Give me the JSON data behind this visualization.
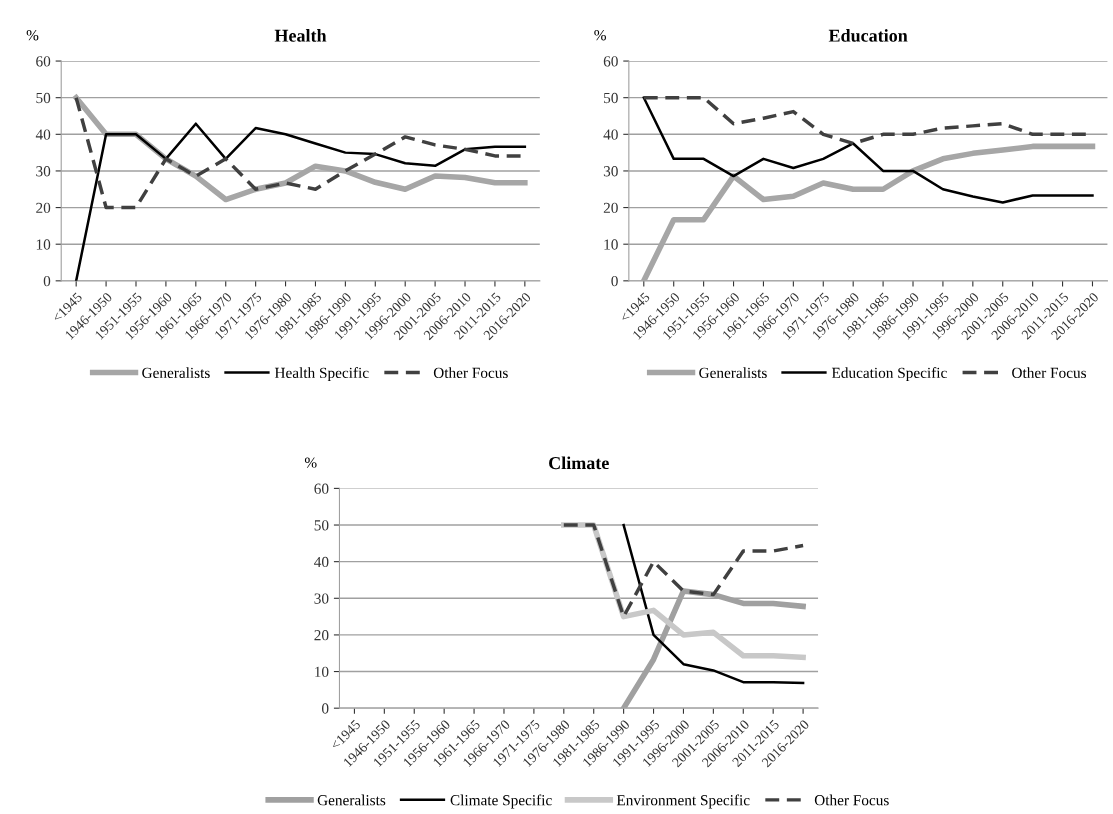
{
  "chart_data": [
    {
      "type": "line",
      "title": "Health",
      "ylabel": "%",
      "categories": [
        "<1945",
        "1946-1950",
        "1951-1955",
        "1956-1960",
        "1961-1965",
        "1966-1970",
        "1971-1975",
        "1976-1980",
        "1981-1985",
        "1986-1990",
        "1991-1995",
        "1996-2000",
        "2001-2005",
        "2006-2010",
        "2011-2015",
        "2016-2020"
      ],
      "ylim": [
        0,
        60
      ],
      "yticks": [
        0,
        10,
        20,
        30,
        40,
        50,
        60
      ],
      "grid": "y",
      "legend": "bottom",
      "series": [
        {
          "name": "Generalists",
          "color": "#a6a6a6",
          "line_style": "solid",
          "values": [
            50,
            40,
            40,
            33.3,
            28.6,
            22.2,
            25,
            26.7,
            31.3,
            30,
            26.9,
            25,
            28.6,
            28.2,
            26.8,
            26.8
          ]
        },
        {
          "name": "Health Specific",
          "color": "#000000",
          "line_style": "solid",
          "values": [
            0,
            40,
            40,
            33.3,
            42.9,
            33.3,
            41.7,
            40,
            37.5,
            35,
            34.6,
            32.1,
            31.4,
            35.9,
            36.6,
            36.6
          ]
        },
        {
          "name": "Other Focus",
          "color": "#404040",
          "line_style": "dashed",
          "values": [
            50,
            20,
            20,
            33.3,
            28.6,
            33.3,
            25,
            26.7,
            25,
            30,
            34.6,
            39.3,
            37.1,
            35.9,
            34.1,
            34.1
          ]
        }
      ]
    },
    {
      "type": "line",
      "title": "Education",
      "ylabel": "%",
      "categories": [
        "<1945",
        "1946-1950",
        "1951-1955",
        "1956-1960",
        "1961-1965",
        "1966-1970",
        "1971-1975",
        "1976-1980",
        "1981-1985",
        "1986-1990",
        "1991-1995",
        "1996-2000",
        "2001-2005",
        "2006-2010",
        "2011-2015",
        "2016-2020"
      ],
      "ylim": [
        0,
        60
      ],
      "yticks": [
        0,
        10,
        20,
        30,
        40,
        50,
        60
      ],
      "grid": "y",
      "legend": "bottom",
      "series": [
        {
          "name": "Generalists",
          "color": "#a6a6a6",
          "line_style": "solid",
          "values": [
            0,
            16.7,
            16.7,
            28.6,
            22.2,
            23.1,
            26.7,
            25,
            25,
            30,
            33.3,
            34.8,
            35.7,
            36.7,
            36.7,
            36.7
          ]
        },
        {
          "name": "Education Specific",
          "color": "#000000",
          "line_style": "solid",
          "values": [
            50,
            33.3,
            33.3,
            28.6,
            33.3,
            30.8,
            33.3,
            37.5,
            30,
            30,
            25,
            23,
            21.4,
            23.3,
            23.3,
            23.3
          ]
        },
        {
          "name": "Other Focus",
          "color": "#404040",
          "line_style": "dashed",
          "values": [
            50,
            50,
            50,
            42.9,
            44.4,
            46.2,
            40,
            37.5,
            40,
            40,
            41.7,
            42.3,
            42.9,
            40,
            40,
            40
          ]
        }
      ]
    },
    {
      "type": "line",
      "title": "Climate",
      "ylabel": "%",
      "categories": [
        "<1945",
        "1946-1950",
        "1951-1955",
        "1956-1960",
        "1961-1965",
        "1966-1970",
        "1971-1975",
        "1976-1980",
        "1981-1985",
        "1986-1990",
        "1991-1995",
        "1996-2000",
        "2001-2005",
        "2006-2010",
        "2011-2015",
        "2016-2020"
      ],
      "ylim": [
        0,
        60
      ],
      "yticks": [
        0,
        10,
        20,
        30,
        40,
        50,
        60
      ],
      "grid": "y",
      "legend": "bottom",
      "series": [
        {
          "name": "Generalists",
          "color": "#a0a0a0",
          "line_style": "solid",
          "values": [
            null,
            null,
            null,
            null,
            null,
            null,
            null,
            null,
            null,
            0,
            13.3,
            32,
            31,
            28.6,
            28.6,
            27.8
          ]
        },
        {
          "name": "Climate Specific",
          "color": "#000000",
          "line_style": "solid",
          "values": [
            null,
            null,
            null,
            null,
            null,
            null,
            null,
            null,
            null,
            50,
            20,
            12,
            10.3,
            7.1,
            7.1,
            6.9
          ]
        },
        {
          "name": "Environment Specific",
          "color": "#c8c8c8",
          "line_style": "solid",
          "values": [
            null,
            null,
            null,
            null,
            null,
            null,
            null,
            50,
            50,
            25,
            26.7,
            20,
            20.7,
            14.3,
            14.3,
            13.9
          ]
        },
        {
          "name": "Other Focus",
          "color": "#404040",
          "line_style": "dashed",
          "values": [
            null,
            null,
            null,
            null,
            null,
            null,
            null,
            50,
            50,
            25,
            40,
            32,
            31,
            42.9,
            42.9,
            44.4
          ]
        }
      ]
    }
  ]
}
